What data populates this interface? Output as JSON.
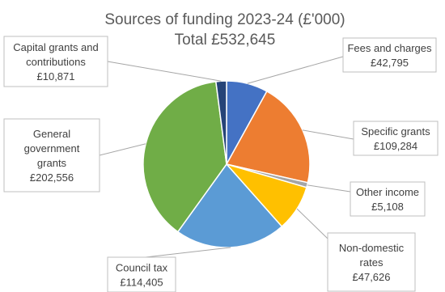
{
  "chart_data": {
    "type": "pie",
    "title": "Sources of funding 2023-24 (£'000)",
    "subtitle": "Total £532,645",
    "slices": [
      {
        "label": "Fees and charges",
        "value": 42795,
        "value_text": "£42,795",
        "color": "#4472C4"
      },
      {
        "label": "Specific grants",
        "value": 109284,
        "value_text": "£109,284",
        "color": "#ED7D31"
      },
      {
        "label": "Other income",
        "value": 5108,
        "value_text": "£5,108",
        "color": "#A5A5A5"
      },
      {
        "label": "Non-domestic rates",
        "value": 47626,
        "value_text": "£47,626",
        "color": "#FFC000"
      },
      {
        "label": "Council tax",
        "value": 114405,
        "value_text": "£114,405",
        "color": "#5B9BD5"
      },
      {
        "label": "General government grants",
        "value": 202556,
        "value_text": "£202,556",
        "color": "#70AD47"
      },
      {
        "label": "Capital grants and contributions",
        "value": 10871,
        "value_text": "£10,871",
        "color": "#264478"
      }
    ]
  }
}
